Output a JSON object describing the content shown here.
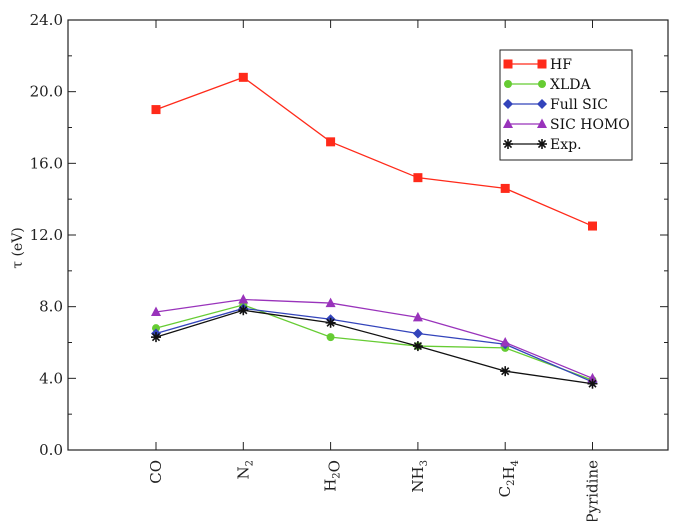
{
  "chart_data": {
    "type": "line",
    "title": "",
    "ylabel": "τ (eV)",
    "xlabel": "",
    "ylim": [
      0,
      24
    ],
    "yticks": [
      "0.0",
      "4.0",
      "8.0",
      "12.0",
      "16.0",
      "20.0",
      "24.0"
    ],
    "categories": [
      "CO",
      "N2",
      "H2O",
      "NH3",
      "C2H4",
      "Pyridine"
    ],
    "category_labels": [
      {
        "base": "CO",
        "sub": ""
      },
      {
        "base": "N",
        "sub": "2"
      },
      {
        "base": "H",
        "sub": "2",
        "tail": "O"
      },
      {
        "base": "NH",
        "sub": "3"
      },
      {
        "base": "C",
        "sub": "2",
        "tail": "H",
        "sub2": "4"
      },
      {
        "base": "Pyridine",
        "sub": ""
      }
    ],
    "legend_position": "top-right",
    "grid": false,
    "series": [
      {
        "name": "HF",
        "color": "#ff2a1a",
        "marker": "square",
        "values": [
          19.0,
          20.8,
          17.2,
          15.2,
          14.6,
          12.5
        ]
      },
      {
        "name": "XLDA",
        "color": "#66cc33",
        "marker": "circle",
        "values": [
          6.8,
          8.1,
          6.3,
          5.8,
          5.7,
          3.9
        ]
      },
      {
        "name": "Full SIC",
        "color": "#3344bb",
        "marker": "diamond",
        "values": [
          6.5,
          7.9,
          7.3,
          6.5,
          5.9,
          3.8
        ]
      },
      {
        "name": "SIC HOMO",
        "color": "#9933bb",
        "marker": "triangle",
        "values": [
          7.7,
          8.4,
          8.2,
          7.4,
          6.0,
          4.0
        ]
      },
      {
        "name": "Exp.",
        "color": "#111111",
        "marker": "star",
        "values": [
          6.3,
          7.8,
          7.1,
          5.8,
          4.4,
          3.7
        ]
      }
    ]
  }
}
